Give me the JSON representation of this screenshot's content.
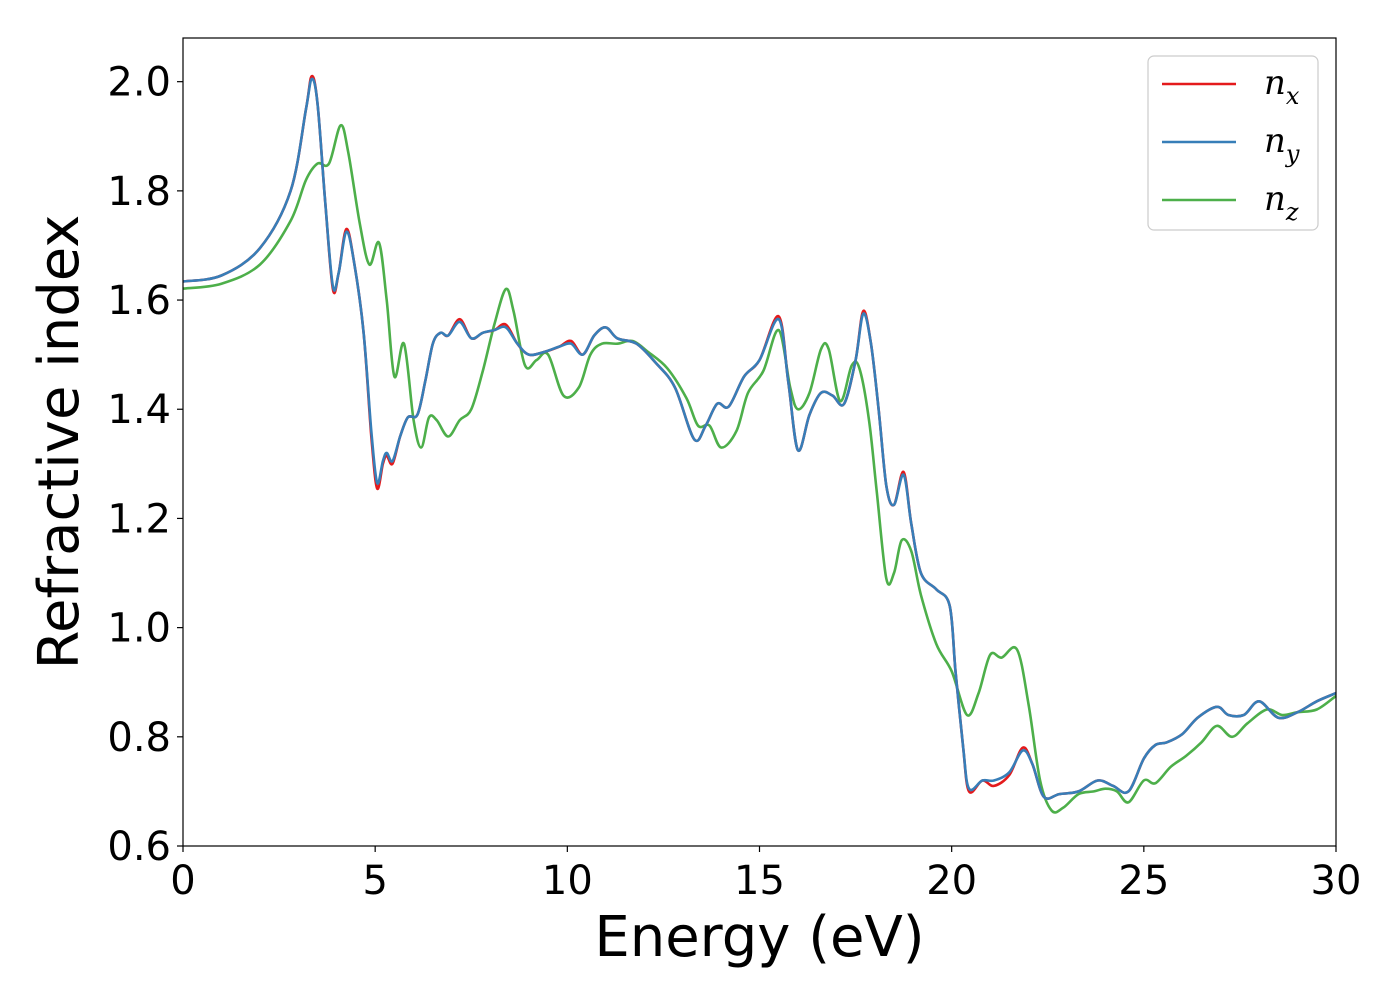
{
  "chart_data": {
    "type": "line",
    "xlabel": "Energy (eV)",
    "ylabel": "Refractive index",
    "xlim": [
      0,
      30
    ],
    "ylim": [
      0.6,
      2.08
    ],
    "xticks": [
      "0",
      "5",
      "10",
      "15",
      "20",
      "25",
      "30"
    ],
    "yticks": [
      "0.6",
      "0.8",
      "1.0",
      "1.2",
      "1.4",
      "1.6",
      "1.8",
      "2.0"
    ],
    "grid": false,
    "legend_position": "top-right",
    "series": [
      {
        "name": "n",
        "subscript": "x",
        "color": "#e41a1c",
        "points": [
          [
            0,
            1.634
          ],
          [
            1,
            1.645
          ],
          [
            2,
            1.695
          ],
          [
            2.8,
            1.8
          ],
          [
            3.2,
            1.95
          ],
          [
            3.35,
            2.01
          ],
          [
            3.5,
            1.96
          ],
          [
            3.7,
            1.78
          ],
          [
            3.9,
            1.62
          ],
          [
            4.05,
            1.65
          ],
          [
            4.25,
            1.73
          ],
          [
            4.45,
            1.67
          ],
          [
            4.7,
            1.54
          ],
          [
            4.9,
            1.35
          ],
          [
            5.05,
            1.255
          ],
          [
            5.2,
            1.3
          ],
          [
            5.3,
            1.315
          ],
          [
            5.45,
            1.3
          ],
          [
            5.65,
            1.35
          ],
          [
            5.85,
            1.385
          ],
          [
            6.1,
            1.39
          ],
          [
            6.3,
            1.45
          ],
          [
            6.5,
            1.52
          ],
          [
            6.7,
            1.54
          ],
          [
            6.9,
            1.535
          ],
          [
            7.2,
            1.565
          ],
          [
            7.5,
            1.53
          ],
          [
            7.8,
            1.54
          ],
          [
            8.1,
            1.545
          ],
          [
            8.4,
            1.555
          ],
          [
            8.7,
            1.52
          ],
          [
            9.0,
            1.5
          ],
          [
            9.4,
            1.505
          ],
          [
            9.8,
            1.515
          ],
          [
            10.1,
            1.525
          ],
          [
            10.4,
            1.5
          ],
          [
            10.7,
            1.535
          ],
          [
            11.0,
            1.55
          ],
          [
            11.3,
            1.53
          ],
          [
            11.8,
            1.52
          ],
          [
            12.3,
            1.485
          ],
          [
            12.8,
            1.44
          ],
          [
            13.3,
            1.345
          ],
          [
            13.6,
            1.37
          ],
          [
            13.9,
            1.41
          ],
          [
            14.2,
            1.405
          ],
          [
            14.6,
            1.46
          ],
          [
            15.0,
            1.49
          ],
          [
            15.5,
            1.57
          ],
          [
            15.75,
            1.45
          ],
          [
            16.0,
            1.325
          ],
          [
            16.3,
            1.39
          ],
          [
            16.6,
            1.43
          ],
          [
            16.9,
            1.425
          ],
          [
            17.2,
            1.41
          ],
          [
            17.5,
            1.49
          ],
          [
            17.7,
            1.58
          ],
          [
            17.9,
            1.52
          ],
          [
            18.1,
            1.4
          ],
          [
            18.3,
            1.26
          ],
          [
            18.5,
            1.225
          ],
          [
            18.75,
            1.285
          ],
          [
            18.95,
            1.19
          ],
          [
            19.2,
            1.1
          ],
          [
            19.6,
            1.07
          ],
          [
            19.95,
            1.04
          ],
          [
            20.1,
            0.92
          ],
          [
            20.3,
            0.78
          ],
          [
            20.45,
            0.7
          ],
          [
            20.8,
            0.72
          ],
          [
            21.1,
            0.71
          ],
          [
            21.5,
            0.73
          ],
          [
            21.85,
            0.78
          ],
          [
            22.1,
            0.75
          ],
          [
            22.4,
            0.69
          ],
          [
            22.8,
            0.695
          ],
          [
            23.3,
            0.7
          ],
          [
            23.8,
            0.72
          ],
          [
            24.2,
            0.71
          ],
          [
            24.6,
            0.7
          ],
          [
            25.0,
            0.76
          ],
          [
            25.3,
            0.785
          ],
          [
            25.6,
            0.79
          ],
          [
            26.0,
            0.805
          ],
          [
            26.4,
            0.835
          ],
          [
            26.9,
            0.855
          ],
          [
            27.2,
            0.84
          ],
          [
            27.6,
            0.84
          ],
          [
            28.0,
            0.865
          ],
          [
            28.5,
            0.835
          ],
          [
            29.0,
            0.845
          ],
          [
            29.5,
            0.865
          ],
          [
            30.0,
            0.88
          ]
        ]
      },
      {
        "name": "n",
        "subscript": "y",
        "color": "#377eb8",
        "points": [
          [
            0,
            1.634
          ],
          [
            1,
            1.645
          ],
          [
            2,
            1.695
          ],
          [
            2.8,
            1.8
          ],
          [
            3.2,
            1.95
          ],
          [
            3.35,
            2.005
          ],
          [
            3.5,
            1.96
          ],
          [
            3.7,
            1.78
          ],
          [
            3.9,
            1.625
          ],
          [
            4.05,
            1.65
          ],
          [
            4.25,
            1.725
          ],
          [
            4.45,
            1.67
          ],
          [
            4.7,
            1.54
          ],
          [
            4.9,
            1.36
          ],
          [
            5.05,
            1.265
          ],
          [
            5.2,
            1.305
          ],
          [
            5.3,
            1.32
          ],
          [
            5.45,
            1.305
          ],
          [
            5.65,
            1.35
          ],
          [
            5.85,
            1.385
          ],
          [
            6.1,
            1.39
          ],
          [
            6.3,
            1.45
          ],
          [
            6.5,
            1.52
          ],
          [
            6.7,
            1.54
          ],
          [
            6.9,
            1.535
          ],
          [
            7.2,
            1.56
          ],
          [
            7.5,
            1.53
          ],
          [
            7.8,
            1.54
          ],
          [
            8.1,
            1.545
          ],
          [
            8.4,
            1.55
          ],
          [
            8.7,
            1.52
          ],
          [
            9.0,
            1.5
          ],
          [
            9.4,
            1.505
          ],
          [
            9.8,
            1.515
          ],
          [
            10.1,
            1.52
          ],
          [
            10.4,
            1.5
          ],
          [
            10.7,
            1.535
          ],
          [
            11.0,
            1.55
          ],
          [
            11.3,
            1.53
          ],
          [
            11.8,
            1.52
          ],
          [
            12.3,
            1.485
          ],
          [
            12.8,
            1.44
          ],
          [
            13.3,
            1.345
          ],
          [
            13.6,
            1.37
          ],
          [
            13.9,
            1.41
          ],
          [
            14.2,
            1.405
          ],
          [
            14.6,
            1.46
          ],
          [
            15.0,
            1.49
          ],
          [
            15.5,
            1.565
          ],
          [
            15.75,
            1.45
          ],
          [
            16.0,
            1.325
          ],
          [
            16.3,
            1.39
          ],
          [
            16.6,
            1.43
          ],
          [
            16.9,
            1.425
          ],
          [
            17.2,
            1.41
          ],
          [
            17.5,
            1.49
          ],
          [
            17.7,
            1.575
          ],
          [
            17.9,
            1.52
          ],
          [
            18.1,
            1.4
          ],
          [
            18.3,
            1.26
          ],
          [
            18.5,
            1.225
          ],
          [
            18.75,
            1.28
          ],
          [
            18.95,
            1.19
          ],
          [
            19.2,
            1.1
          ],
          [
            19.6,
            1.07
          ],
          [
            19.95,
            1.04
          ],
          [
            20.1,
            0.92
          ],
          [
            20.3,
            0.78
          ],
          [
            20.45,
            0.705
          ],
          [
            20.8,
            0.72
          ],
          [
            21.1,
            0.72
          ],
          [
            21.5,
            0.735
          ],
          [
            21.85,
            0.775
          ],
          [
            22.1,
            0.75
          ],
          [
            22.4,
            0.69
          ],
          [
            22.8,
            0.695
          ],
          [
            23.3,
            0.7
          ],
          [
            23.8,
            0.72
          ],
          [
            24.2,
            0.71
          ],
          [
            24.6,
            0.7
          ],
          [
            25.0,
            0.76
          ],
          [
            25.3,
            0.785
          ],
          [
            25.6,
            0.79
          ],
          [
            26.0,
            0.805
          ],
          [
            26.4,
            0.835
          ],
          [
            26.9,
            0.855
          ],
          [
            27.2,
            0.84
          ],
          [
            27.6,
            0.84
          ],
          [
            28.0,
            0.865
          ],
          [
            28.5,
            0.835
          ],
          [
            29.0,
            0.845
          ],
          [
            29.5,
            0.865
          ],
          [
            30.0,
            0.88
          ]
        ]
      },
      {
        "name": "n",
        "subscript": "z",
        "color": "#4daf4a",
        "points": [
          [
            0,
            1.621
          ],
          [
            1,
            1.63
          ],
          [
            2,
            1.665
          ],
          [
            2.8,
            1.745
          ],
          [
            3.2,
            1.82
          ],
          [
            3.5,
            1.85
          ],
          [
            3.8,
            1.85
          ],
          [
            4.1,
            1.92
          ],
          [
            4.3,
            1.87
          ],
          [
            4.6,
            1.74
          ],
          [
            4.85,
            1.665
          ],
          [
            5.1,
            1.705
          ],
          [
            5.3,
            1.6
          ],
          [
            5.5,
            1.46
          ],
          [
            5.75,
            1.52
          ],
          [
            6.0,
            1.38
          ],
          [
            6.2,
            1.33
          ],
          [
            6.4,
            1.385
          ],
          [
            6.6,
            1.38
          ],
          [
            6.9,
            1.35
          ],
          [
            7.2,
            1.38
          ],
          [
            7.5,
            1.4
          ],
          [
            7.8,
            1.47
          ],
          [
            8.1,
            1.555
          ],
          [
            8.4,
            1.62
          ],
          [
            8.6,
            1.58
          ],
          [
            8.9,
            1.48
          ],
          [
            9.2,
            1.49
          ],
          [
            9.5,
            1.5
          ],
          [
            9.9,
            1.425
          ],
          [
            10.3,
            1.44
          ],
          [
            10.6,
            1.5
          ],
          [
            10.9,
            1.52
          ],
          [
            11.3,
            1.52
          ],
          [
            11.7,
            1.525
          ],
          [
            12.1,
            1.505
          ],
          [
            12.6,
            1.475
          ],
          [
            13.1,
            1.42
          ],
          [
            13.4,
            1.37
          ],
          [
            13.7,
            1.37
          ],
          [
            14.0,
            1.33
          ],
          [
            14.4,
            1.36
          ],
          [
            14.7,
            1.43
          ],
          [
            15.1,
            1.47
          ],
          [
            15.5,
            1.545
          ],
          [
            15.8,
            1.44
          ],
          [
            16.0,
            1.4
          ],
          [
            16.3,
            1.43
          ],
          [
            16.6,
            1.51
          ],
          [
            16.8,
            1.51
          ],
          [
            17.1,
            1.415
          ],
          [
            17.4,
            1.48
          ],
          [
            17.6,
            1.475
          ],
          [
            17.85,
            1.38
          ],
          [
            18.05,
            1.25
          ],
          [
            18.3,
            1.09
          ],
          [
            18.5,
            1.1
          ],
          [
            18.7,
            1.16
          ],
          [
            18.95,
            1.14
          ],
          [
            19.2,
            1.06
          ],
          [
            19.6,
            0.97
          ],
          [
            20.0,
            0.92
          ],
          [
            20.4,
            0.84
          ],
          [
            20.7,
            0.88
          ],
          [
            21.0,
            0.95
          ],
          [
            21.3,
            0.945
          ],
          [
            21.7,
            0.96
          ],
          [
            22.0,
            0.86
          ],
          [
            22.3,
            0.72
          ],
          [
            22.6,
            0.665
          ],
          [
            22.9,
            0.67
          ],
          [
            23.3,
            0.695
          ],
          [
            23.7,
            0.7
          ],
          [
            24.0,
            0.705
          ],
          [
            24.3,
            0.7
          ],
          [
            24.6,
            0.68
          ],
          [
            25.0,
            0.72
          ],
          [
            25.3,
            0.715
          ],
          [
            25.7,
            0.745
          ],
          [
            26.1,
            0.765
          ],
          [
            26.5,
            0.79
          ],
          [
            26.9,
            0.82
          ],
          [
            27.3,
            0.8
          ],
          [
            27.7,
            0.825
          ],
          [
            28.2,
            0.85
          ],
          [
            28.6,
            0.84
          ],
          [
            29.0,
            0.845
          ],
          [
            29.5,
            0.85
          ],
          [
            30.0,
            0.875
          ]
        ]
      }
    ]
  }
}
